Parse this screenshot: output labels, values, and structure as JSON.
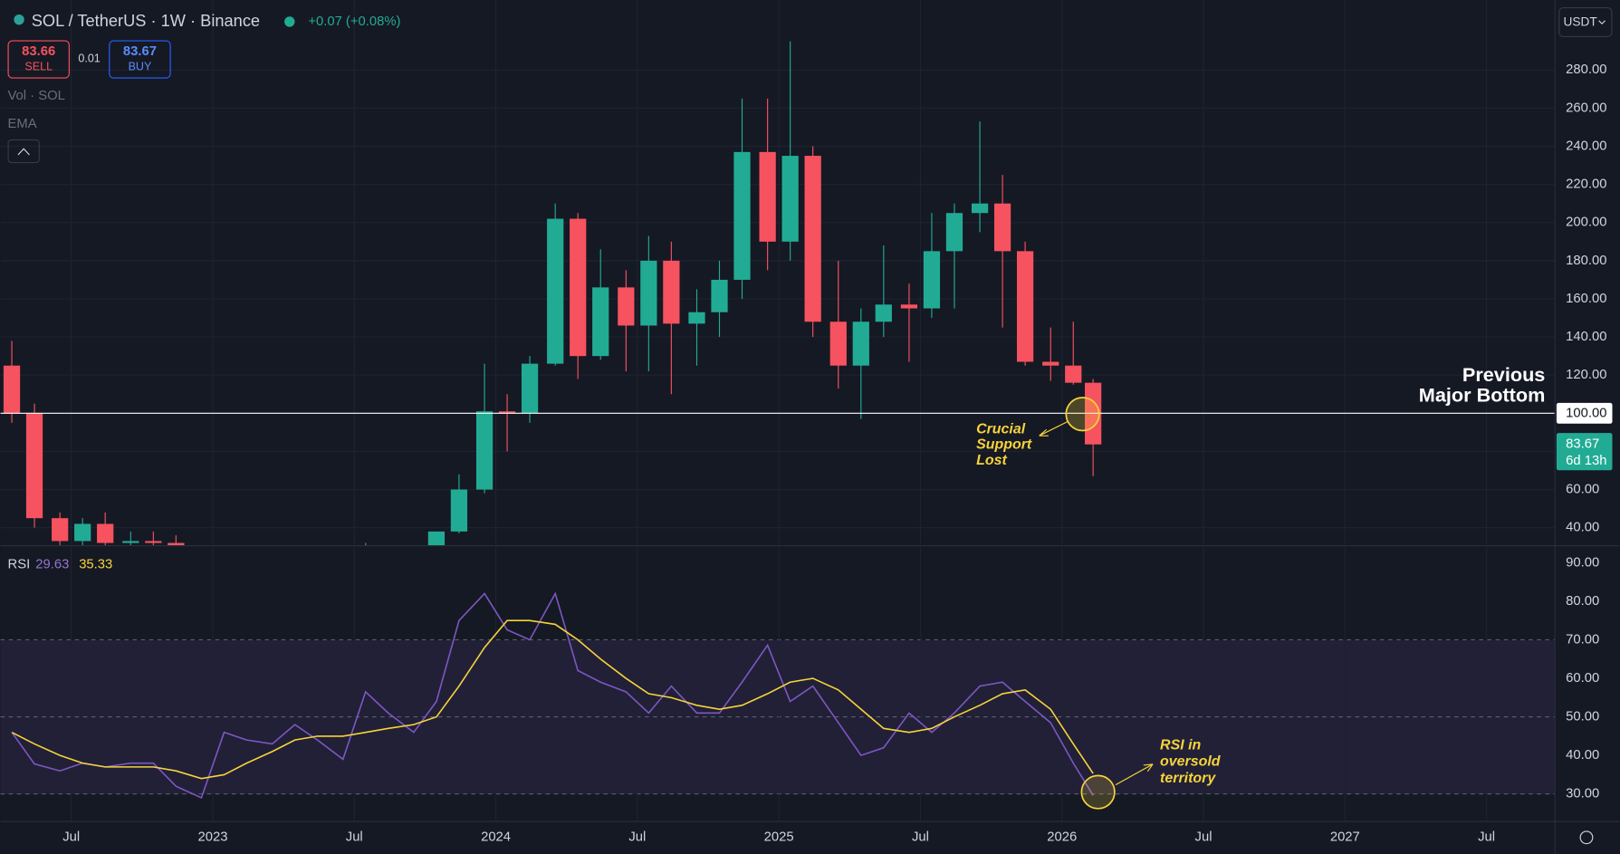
{
  "header": {
    "symbol": "SOL / TetherUS · 1W · Binance",
    "change": "+0.07 (+0.08%)",
    "sell_price": "83.66",
    "sell_label": "SELL",
    "spread": "0.01",
    "buy_label": "BUY",
    "currency": "USDT",
    "indicators": [
      "Vol · SOL",
      "EMA"
    ]
  },
  "chart_data": [
    {
      "type": "candlestick",
      "x": [
        2022.29,
        2022.37,
        2022.46,
        2022.54,
        2022.62,
        2022.71,
        2022.79,
        2022.87,
        2022.96,
        2023.04,
        2023.12,
        2023.21,
        2023.29,
        2023.37,
        2023.46,
        2023.54,
        2023.62,
        2023.71,
        2023.79,
        2023.87,
        2023.96,
        2024.04,
        2024.12,
        2024.21,
        2024.29,
        2024.37,
        2024.46,
        2024.54,
        2024.62,
        2024.71,
        2024.79,
        2024.87,
        2024.96,
        2025.04,
        2025.12,
        2025.21,
        2025.29,
        2025.37,
        2025.46,
        2025.54,
        2025.62,
        2025.71,
        2025.79,
        2025.87,
        2025.96,
        2026.04,
        2026.11
      ],
      "open": [
        125,
        100,
        45,
        33,
        42,
        32,
        33,
        32,
        14,
        10,
        24,
        21,
        21,
        22,
        20,
        19,
        24,
        20,
        21,
        38,
        60,
        101,
        100,
        126,
        202,
        130,
        166,
        146,
        180,
        147,
        153,
        170,
        237,
        190,
        235,
        148,
        125,
        148,
        157,
        155,
        185,
        205,
        210,
        185,
        127,
        125,
        116
      ],
      "high": [
        138,
        105,
        48,
        45,
        48,
        38,
        38,
        36,
        15,
        26,
        27,
        24,
        26,
        23,
        21,
        32,
        26,
        22,
        38,
        68,
        126,
        110,
        130,
        210,
        205,
        186,
        175,
        193,
        190,
        165,
        180,
        265,
        265,
        295,
        240,
        180,
        155,
        188,
        168,
        205,
        210,
        253,
        225,
        190,
        145,
        148,
        118
      ],
      "low": [
        95,
        40,
        27,
        30,
        30,
        30,
        27,
        11,
        8,
        9,
        19,
        16,
        19,
        18,
        14,
        18,
        18,
        17,
        21,
        37,
        58,
        80,
        95,
        125,
        118,
        128,
        122,
        122,
        110,
        125,
        140,
        160,
        175,
        180,
        140,
        113,
        97,
        140,
        127,
        150,
        155,
        195,
        145,
        125,
        117,
        115,
        67
      ],
      "close": [
        100,
        45,
        33,
        42,
        32,
        33,
        32,
        14,
        10,
        24,
        21,
        21,
        22,
        20,
        19,
        24,
        20,
        21,
        38,
        60,
        101,
        100,
        126,
        202,
        130,
        166,
        146,
        180,
        147,
        153,
        170,
        237,
        190,
        235,
        148,
        125,
        148,
        157,
        155,
        185,
        205,
        210,
        185,
        127,
        125,
        116,
        83.67
      ],
      "colors": {
        "up": "#22ab94",
        "down": "#f7525f"
      },
      "xlim": [
        2022.25,
        2027.74
      ],
      "ylim": [
        30.8,
        314
      ],
      "yticks": [
        {
          "value": 40,
          "label": "40.00"
        },
        {
          "value": 60,
          "label": "60.00"
        },
        {
          "value": 80,
          "label": "80.00"
        },
        {
          "value": 120,
          "label": "120.00"
        },
        {
          "value": 140,
          "label": "140.00"
        },
        {
          "value": 160,
          "label": "160.00"
        },
        {
          "value": 180,
          "label": "180.00"
        },
        {
          "value": 200,
          "label": "200.00"
        },
        {
          "value": 220,
          "label": "220.00"
        },
        {
          "value": 240,
          "label": "240.00"
        },
        {
          "value": 260,
          "label": "260.00"
        },
        {
          "value": 280,
          "label": "280.00"
        }
      ],
      "reference_line": {
        "value": 100,
        "label": "100.00"
      },
      "countdown": "6d 13h",
      "annotations": [
        {
          "lines": [
            "Previous",
            "Major Bottom"
          ]
        },
        {
          "lines": [
            "Crucial",
            "Support",
            "Lost"
          ]
        }
      ]
    },
    {
      "type": "line",
      "title": "RSI",
      "x": [
        2022.29,
        2022.37,
        2022.46,
        2022.54,
        2022.62,
        2022.71,
        2022.79,
        2022.87,
        2022.96,
        2023.04,
        2023.12,
        2023.21,
        2023.29,
        2023.37,
        2023.46,
        2023.54,
        2023.62,
        2023.71,
        2023.79,
        2023.87,
        2023.96,
        2024.04,
        2024.12,
        2024.21,
        2024.29,
        2024.37,
        2024.46,
        2024.54,
        2024.62,
        2024.71,
        2024.79,
        2024.87,
        2024.96,
        2025.04,
        2025.12,
        2025.21,
        2025.29,
        2025.37,
        2025.46,
        2025.54,
        2025.62,
        2025.71,
        2025.79,
        2025.87,
        2025.96,
        2026.04,
        2026.11
      ],
      "series": [
        {
          "color": "#7e57c2",
          "values": [
            46,
            37.8,
            36,
            38,
            37,
            38,
            38,
            32,
            29,
            46,
            44,
            43,
            48,
            44,
            39,
            56.5,
            51,
            46,
            54,
            75,
            82,
            72.6,
            70,
            82,
            62,
            59,
            56.5,
            51,
            58,
            51,
            51,
            59,
            68.6,
            54,
            58,
            48.5,
            40,
            42,
            51,
            46,
            51,
            58,
            59,
            54,
            48.5,
            38,
            29.63
          ]
        },
        {
          "color": "#f7d33b",
          "values": [
            46,
            43,
            40,
            38,
            37,
            37,
            37,
            36,
            34,
            35,
            38,
            41,
            44,
            45,
            45,
            46,
            47,
            48,
            50,
            58,
            68,
            75,
            75,
            74,
            70,
            65,
            60,
            56,
            55,
            53,
            52,
            53,
            56,
            59,
            60,
            57,
            52,
            47,
            46,
            47,
            50,
            53,
            56,
            57,
            52,
            43,
            35.33
          ]
        }
      ],
      "xlim": [
        2022.25,
        2027.74
      ],
      "ylim": [
        23,
        94
      ],
      "yticks": [
        {
          "value": 30,
          "label": "30.00"
        },
        {
          "value": 40,
          "label": "40.00"
        },
        {
          "value": 50,
          "label": "50.00"
        },
        {
          "value": 60,
          "label": "60.00"
        },
        {
          "value": 70,
          "label": "70.00"
        },
        {
          "value": 80,
          "label": "80.00"
        },
        {
          "value": 90,
          "label": "90.00"
        }
      ],
      "bands": [
        30,
        50,
        70
      ],
      "xticks": [
        {
          "value": 2022.5,
          "label": "Jul"
        },
        {
          "value": 2023,
          "label": "2023"
        },
        {
          "value": 2023.5,
          "label": "Jul"
        },
        {
          "value": 2024,
          "label": "2024"
        },
        {
          "value": 2024.5,
          "label": "Jul"
        },
        {
          "value": 2025,
          "label": "2025"
        },
        {
          "value": 2025.5,
          "label": "Jul"
        },
        {
          "value": 2026,
          "label": "2026"
        },
        {
          "value": 2026.5,
          "label": "Jul"
        },
        {
          "value": 2027,
          "label": "2027"
        },
        {
          "value": 2027.5,
          "label": "Jul"
        }
      ],
      "annotations": [
        {
          "lines": [
            "RSI in",
            "oversold",
            "territory"
          ]
        }
      ]
    }
  ]
}
